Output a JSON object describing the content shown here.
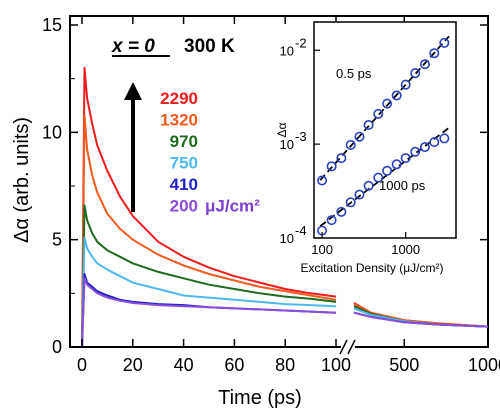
{
  "chart_data": [
    {
      "type": "line",
      "title": "x = 0   300 K",
      "title_parts": {
        "variable": "x = 0",
        "temperature": "300 K"
      },
      "xlabel": "Time (ps)",
      "ylabel": "Δα (arb. units)",
      "ylim": [
        0,
        15
      ],
      "y_ticks": [
        "0",
        "5",
        "10",
        "15"
      ],
      "x_ticks": [
        "0",
        "20",
        "40",
        "60",
        "80",
        "100",
        "500",
        "1000"
      ],
      "x_axis_break": {
        "between": [
          105,
          200
        ],
        "style": "broken"
      },
      "legend_unit": "μJ/cm²",
      "legend_placement": "left-center",
      "series": [
        {
          "name": "2290",
          "color": "#ee1c1c",
          "points": [
            [
              0,
              0
            ],
            [
              1,
              13
            ],
            [
              2,
              11.6
            ],
            [
              4,
              10.4
            ],
            [
              6,
              9.4
            ],
            [
              10,
              8.2
            ],
            [
              15,
              7.0
            ],
            [
              20,
              6.1
            ],
            [
              30,
              4.9
            ],
            [
              40,
              4.2
            ],
            [
              50,
              3.7
            ],
            [
              60,
              3.3
            ],
            [
              70,
              3.0
            ],
            [
              80,
              2.7
            ],
            [
              90,
              2.5
            ],
            [
              100,
              2.35
            ],
            [
              200,
              2.05
            ],
            [
              300,
              1.6
            ],
            [
              500,
              1.25
            ],
            [
              700,
              1.1
            ],
            [
              1000,
              0.95
            ]
          ]
        },
        {
          "name": "1320",
          "color": "#f25a1e",
          "points": [
            [
              0,
              0
            ],
            [
              1,
              10.8
            ],
            [
              2,
              9.2
            ],
            [
              4,
              8.0
            ],
            [
              6,
              7.2
            ],
            [
              10,
              6.2
            ],
            [
              15,
              5.5
            ],
            [
              20,
              5.0
            ],
            [
              30,
              4.3
            ],
            [
              40,
              3.8
            ],
            [
              50,
              3.4
            ],
            [
              60,
              3.1
            ],
            [
              70,
              2.8
            ],
            [
              80,
              2.6
            ],
            [
              90,
              2.4
            ],
            [
              100,
              2.2
            ],
            [
              200,
              2.0
            ],
            [
              300,
              1.6
            ],
            [
              500,
              1.25
            ],
            [
              700,
              1.1
            ],
            [
              1000,
              0.95
            ]
          ]
        },
        {
          "name": "970",
          "color": "#1f6a1f",
          "points": [
            [
              0,
              0
            ],
            [
              1,
              6.6
            ],
            [
              2,
              5.9
            ],
            [
              4,
              5.3
            ],
            [
              6,
              4.9
            ],
            [
              10,
              4.5
            ],
            [
              15,
              4.2
            ],
            [
              20,
              3.9
            ],
            [
              30,
              3.5
            ],
            [
              40,
              3.2
            ],
            [
              50,
              2.9
            ],
            [
              60,
              2.7
            ],
            [
              70,
              2.5
            ],
            [
              80,
              2.35
            ],
            [
              90,
              2.25
            ],
            [
              100,
              2.1
            ],
            [
              200,
              1.9
            ],
            [
              300,
              1.55
            ],
            [
              500,
              1.2
            ],
            [
              700,
              1.05
            ],
            [
              1000,
              0.95
            ]
          ]
        },
        {
          "name": "750",
          "color": "#4fb8ee",
          "points": [
            [
              0,
              0
            ],
            [
              1,
              5.1
            ],
            [
              2,
              4.6
            ],
            [
              4,
              4.2
            ],
            [
              6,
              3.9
            ],
            [
              10,
              3.6
            ],
            [
              15,
              3.3
            ],
            [
              20,
              3.0
            ],
            [
              30,
              2.7
            ],
            [
              40,
              2.4
            ],
            [
              50,
              2.3
            ],
            [
              60,
              2.2
            ],
            [
              70,
              2.1
            ],
            [
              80,
              2.0
            ],
            [
              90,
              1.95
            ],
            [
              100,
              1.9
            ],
            [
              200,
              1.8
            ],
            [
              300,
              1.5
            ],
            [
              500,
              1.2
            ],
            [
              700,
              1.05
            ],
            [
              1000,
              0.95
            ]
          ]
        },
        {
          "name": "410",
          "color": "#1e1ec8",
          "points": [
            [
              0,
              0
            ],
            [
              1,
              3.4
            ],
            [
              2,
              3.0
            ],
            [
              4,
              2.8
            ],
            [
              6,
              2.6
            ],
            [
              10,
              2.4
            ],
            [
              15,
              2.2
            ],
            [
              20,
              2.1
            ],
            [
              30,
              2.0
            ],
            [
              40,
              1.95
            ],
            [
              50,
              1.85
            ],
            [
              60,
              1.8
            ],
            [
              70,
              1.75
            ],
            [
              80,
              1.7
            ],
            [
              90,
              1.65
            ],
            [
              100,
              1.6
            ],
            [
              200,
              1.6
            ],
            [
              300,
              1.4
            ],
            [
              500,
              1.15
            ],
            [
              700,
              1.05
            ],
            [
              1000,
              0.95
            ]
          ]
        },
        {
          "name": "200",
          "color": "#8a4fd8",
          "points": [
            [
              0,
              0
            ],
            [
              1,
              3.2
            ],
            [
              2,
              2.9
            ],
            [
              4,
              2.7
            ],
            [
              6,
              2.5
            ],
            [
              10,
              2.3
            ],
            [
              15,
              2.15
            ],
            [
              20,
              2.05
            ],
            [
              30,
              1.95
            ],
            [
              40,
              1.9
            ],
            [
              50,
              1.85
            ],
            [
              60,
              1.8
            ],
            [
              70,
              1.75
            ],
            [
              80,
              1.7
            ],
            [
              90,
              1.65
            ],
            [
              100,
              1.6
            ],
            [
              200,
              1.6
            ],
            [
              300,
              1.4
            ],
            [
              500,
              1.15
            ],
            [
              700,
              1.05
            ],
            [
              1000,
              0.95
            ]
          ]
        }
      ]
    },
    {
      "type": "scatter",
      "inset": true,
      "xlabel": "Excitation Density (μJ/cm²)",
      "ylabel": "Δα",
      "xscale": "log",
      "yscale": "log",
      "xlim": [
        80,
        4000
      ],
      "ylim": [
        0.0001,
        0.02
      ],
      "x_ticks": [
        "100",
        "1000"
      ],
      "y_tick_exponents": [
        "-4",
        "-3",
        "-2"
      ],
      "marker_color": "#2a3fbf",
      "series": [
        {
          "name": "0.5 ps",
          "x": [
            100,
            130,
            170,
            220,
            280,
            360,
            470,
            600,
            780,
            1000,
            1300,
            1700,
            2200,
            2900
          ],
          "y": [
            0.00041,
            0.00058,
            0.00071,
            0.00098,
            0.0012,
            0.0016,
            0.0021,
            0.0027,
            0.0033,
            0.0043,
            0.0057,
            0.0071,
            0.0093,
            0.012
          ],
          "fit": "dashed"
        },
        {
          "name": "1000 ps",
          "x": [
            100,
            130,
            170,
            220,
            280,
            360,
            470,
            600,
            780,
            1000,
            1300,
            1700,
            2200,
            2900
          ],
          "y": [
            0.00012,
            0.000155,
            0.00019,
            0.00024,
            0.00029,
            0.00036,
            0.00044,
            0.00052,
            0.00061,
            0.00071,
            0.00083,
            0.00093,
            0.00105,
            0.00115
          ],
          "fit": "dashed"
        }
      ]
    }
  ]
}
